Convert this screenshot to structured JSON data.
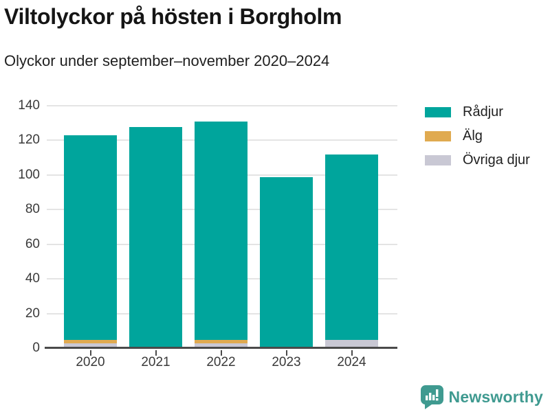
{
  "title": "Viltolyckor på hösten i Borgholm",
  "subtitle": "Olyckor under september–november 2020–2024",
  "footer": {
    "brand": "Newsworthy"
  },
  "colors": {
    "radjur": "#00a59c",
    "alg": "#e0aa50",
    "ovriga": "#c9c8d4",
    "axis": "#4a4a4a",
    "gridline": "#e4e4e4",
    "brand_teal": "#3f9a90",
    "title_text": "#151515",
    "tick_text": "#3a3a3a"
  },
  "chart_data": {
    "type": "bar",
    "stacked": true,
    "title": "Viltolyckor på hösten i Borgholm",
    "subtitle": "Olyckor under september–november 2020–2024",
    "categories": [
      "2020",
      "2021",
      "2022",
      "2023",
      "2024"
    ],
    "series": [
      {
        "name": "Rådjur",
        "color": "#00a59c",
        "values": [
          118,
          127,
          126,
          98,
          107
        ]
      },
      {
        "name": "Älg",
        "color": "#e0aa50",
        "values": [
          2,
          0,
          2,
          0,
          0
        ]
      },
      {
        "name": "Övriga djur",
        "color": "#c9c8d4",
        "values": [
          2,
          0,
          2,
          0,
          4
        ]
      }
    ],
    "totals": [
      122,
      127,
      130,
      98,
      111
    ],
    "stack_order_bottom_to_top": [
      "Övriga djur",
      "Älg",
      "Rådjur"
    ],
    "xlabel": "",
    "ylabel": "",
    "ylim": [
      0,
      140
    ],
    "yticks": [
      0,
      20,
      40,
      60,
      80,
      100,
      120,
      140
    ],
    "grid": true,
    "legend_position": "right"
  }
}
